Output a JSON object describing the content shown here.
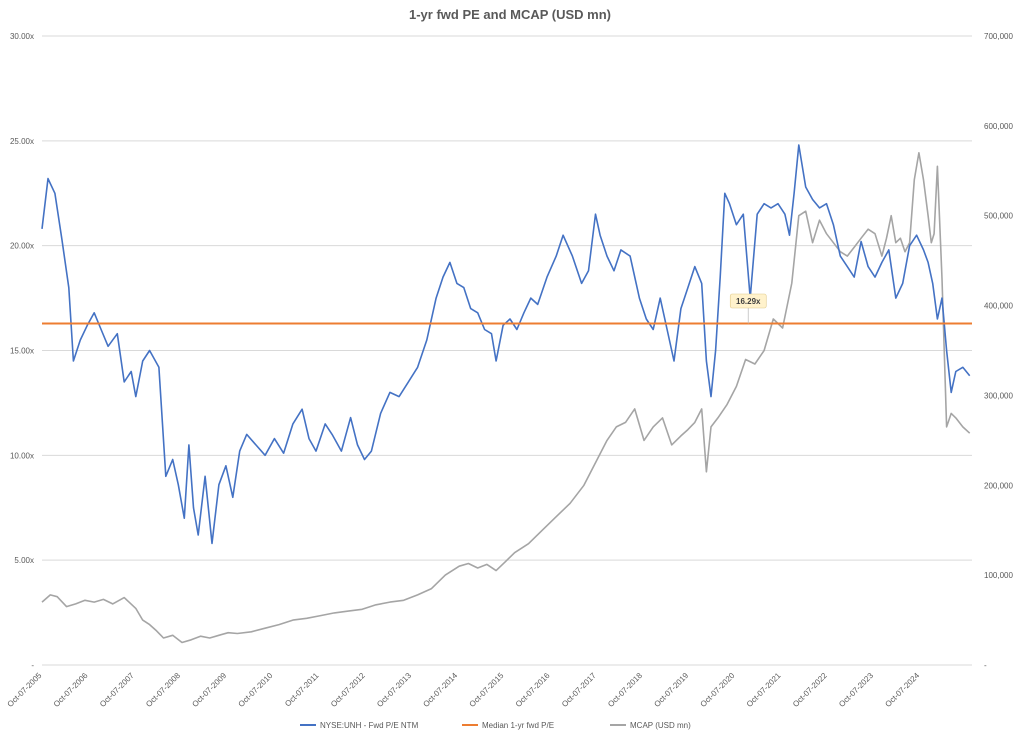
{
  "chart_data": {
    "type": "line",
    "title": "1-yr fwd PE and MCAP (USD mn)",
    "xlabel": "",
    "ylabel": "",
    "y_left": {
      "range": [
        0,
        30
      ],
      "ticks": [
        0,
        5,
        10,
        15,
        20,
        25,
        30
      ],
      "tick_labels": [
        "-",
        "5.00x",
        "10.00x",
        "15.00x",
        "20.00x",
        "25.00x",
        "30.00x"
      ]
    },
    "y_right": {
      "range": [
        0,
        700000
      ],
      "ticks": [
        0,
        100000,
        200000,
        300000,
        400000,
        500000,
        600000,
        700000
      ],
      "tick_labels": [
        "-",
        "100,000",
        "200,000",
        "300,000",
        "400,000",
        "500,000",
        "600,000",
        "700,000"
      ]
    },
    "x_ticks": [
      "Oct-07-2005",
      "Oct-07-2006",
      "Oct-07-2007",
      "Oct-07-2008",
      "Oct-07-2009",
      "Oct-07-2010",
      "Oct-07-2011",
      "Oct-07-2012",
      "Oct-07-2013",
      "Oct-07-2014",
      "Oct-07-2015",
      "Oct-07-2016",
      "Oct-07-2017",
      "Oct-07-2018",
      "Oct-07-2019",
      "Oct-07-2020",
      "Oct-07-2021",
      "Oct-07-2022",
      "Oct-07-2023",
      "Oct-07-2024"
    ],
    "x_range": [
      2005.77,
      2025.9
    ],
    "grid": true,
    "legend_position": "bottom",
    "series": [
      {
        "name": "NYSE:UNH - Fwd P/E NTM",
        "axis": "left",
        "color": "#4472C4",
        "x": [
          2005.77,
          2005.9,
          2006.05,
          2006.2,
          2006.35,
          2006.45,
          2006.6,
          2006.75,
          2006.9,
          2007.05,
          2007.2,
          2007.4,
          2007.55,
          2007.7,
          2007.8,
          2007.95,
          2008.1,
          2008.3,
          2008.45,
          2008.6,
          2008.72,
          2008.85,
          2008.95,
          2009.05,
          2009.15,
          2009.3,
          2009.45,
          2009.6,
          2009.75,
          2009.9,
          2010.05,
          2010.2,
          2010.4,
          2010.6,
          2010.8,
          2011.0,
          2011.2,
          2011.4,
          2011.55,
          2011.7,
          2011.9,
          2012.05,
          2012.25,
          2012.45,
          2012.6,
          2012.75,
          2012.9,
          2013.1,
          2013.3,
          2013.5,
          2013.7,
          2013.9,
          2014.1,
          2014.3,
          2014.45,
          2014.6,
          2014.75,
          2014.9,
          2015.05,
          2015.2,
          2015.35,
          2015.5,
          2015.6,
          2015.75,
          2015.9,
          2016.05,
          2016.2,
          2016.35,
          2016.5,
          2016.7,
          2016.9,
          2017.05,
          2017.25,
          2017.45,
          2017.6,
          2017.75,
          2017.85,
          2018.0,
          2018.15,
          2018.3,
          2018.5,
          2018.7,
          2018.85,
          2019.0,
          2019.15,
          2019.3,
          2019.45,
          2019.6,
          2019.75,
          2019.9,
          2020.05,
          2020.15,
          2020.25,
          2020.35,
          2020.45,
          2020.55,
          2020.65,
          2020.8,
          2020.95,
          2021.1,
          2021.25,
          2021.4,
          2021.55,
          2021.7,
          2021.85,
          2021.95,
          2022.05,
          2022.15,
          2022.3,
          2022.45,
          2022.6,
          2022.75,
          2022.9,
          2023.05,
          2023.2,
          2023.35,
          2023.5,
          2023.65,
          2023.8,
          2023.95,
          2024.1,
          2024.25,
          2024.4,
          2024.55,
          2024.7,
          2024.85,
          2024.95,
          2025.05,
          2025.15,
          2025.25,
          2025.35,
          2025.45,
          2025.55,
          2025.7,
          2025.85
        ],
        "y": [
          20.8,
          23.2,
          22.5,
          20.3,
          18.0,
          14.5,
          15.5,
          16.2,
          16.8,
          16.0,
          15.2,
          15.8,
          13.5,
          14.0,
          12.8,
          14.5,
          15.0,
          14.2,
          9.0,
          9.8,
          8.6,
          7.0,
          10.5,
          7.5,
          6.2,
          9.0,
          5.8,
          8.6,
          9.5,
          8.0,
          10.2,
          11.0,
          10.5,
          10.0,
          10.8,
          10.1,
          11.5,
          12.2,
          10.8,
          10.2,
          11.5,
          11.0,
          10.2,
          11.8,
          10.5,
          9.8,
          10.2,
          12.0,
          13.0,
          12.8,
          13.5,
          14.2,
          15.5,
          17.5,
          18.5,
          19.2,
          18.2,
          18.0,
          17.0,
          16.8,
          16.0,
          15.8,
          14.5,
          16.2,
          16.5,
          16.0,
          16.8,
          17.5,
          17.2,
          18.5,
          19.5,
          20.5,
          19.5,
          18.2,
          18.8,
          21.5,
          20.5,
          19.5,
          18.8,
          19.8,
          19.5,
          17.5,
          16.5,
          16.0,
          17.5,
          16.0,
          14.5,
          17.0,
          18.0,
          19.0,
          18.2,
          14.5,
          12.8,
          15.0,
          18.5,
          22.5,
          22.0,
          21.0,
          21.5,
          17.5,
          21.5,
          22.0,
          21.8,
          22.0,
          21.5,
          20.5,
          22.5,
          24.8,
          22.8,
          22.2,
          21.8,
          22.0,
          21.0,
          19.5,
          19.0,
          18.5,
          20.2,
          19.0,
          18.5,
          19.2,
          19.8,
          17.5,
          18.2,
          20.0,
          20.5,
          19.8,
          19.2,
          18.2,
          16.5,
          17.5,
          15.0,
          13.0,
          14.0,
          14.2,
          13.8
        ]
      },
      {
        "name": "Median 1-yr fwd P/E",
        "axis": "left",
        "color": "#ED7D31",
        "x": [
          2005.77,
          2025.9
        ],
        "y": [
          16.29,
          16.29
        ]
      },
      {
        "name": "MCAP (USD mn)",
        "axis": "right",
        "color": "#A5A5A5",
        "x": [
          2005.77,
          2005.95,
          2006.1,
          2006.3,
          2006.5,
          2006.7,
          2006.9,
          2007.1,
          2007.3,
          2007.55,
          2007.8,
          2007.95,
          2008.1,
          2008.25,
          2008.4,
          2008.6,
          2008.8,
          2009.0,
          2009.2,
          2009.4,
          2009.6,
          2009.8,
          2010.0,
          2010.3,
          2010.6,
          2010.9,
          2011.2,
          2011.5,
          2011.8,
          2012.1,
          2012.4,
          2012.7,
          2013.0,
          2013.3,
          2013.6,
          2013.9,
          2014.2,
          2014.5,
          2014.8,
          2015.0,
          2015.2,
          2015.4,
          2015.6,
          2015.8,
          2016.0,
          2016.3,
          2016.6,
          2016.9,
          2017.2,
          2017.5,
          2017.8,
          2018.0,
          2018.2,
          2018.4,
          2018.6,
          2018.8,
          2019.0,
          2019.2,
          2019.4,
          2019.6,
          2019.75,
          2019.9,
          2020.05,
          2020.15,
          2020.25,
          2020.4,
          2020.6,
          2020.8,
          2021.0,
          2021.2,
          2021.4,
          2021.6,
          2021.8,
          2022.0,
          2022.15,
          2022.3,
          2022.45,
          2022.6,
          2022.75,
          2022.9,
          2023.05,
          2023.2,
          2023.35,
          2023.5,
          2023.65,
          2023.8,
          2023.95,
          2024.05,
          2024.15,
          2024.25,
          2024.35,
          2024.45,
          2024.55,
          2024.65,
          2024.75,
          2024.85,
          2024.95,
          2025.02,
          2025.08,
          2025.15,
          2025.25,
          2025.35,
          2025.45,
          2025.55,
          2025.7,
          2025.85
        ],
        "y": [
          70000,
          78000,
          76000,
          65000,
          68000,
          72000,
          70000,
          73000,
          68000,
          75000,
          63000,
          50000,
          45000,
          38000,
          30000,
          33000,
          25000,
          28000,
          32000,
          30000,
          33000,
          36000,
          35000,
          37000,
          41000,
          45000,
          50000,
          52000,
          55000,
          58000,
          60000,
          62000,
          67000,
          70000,
          72000,
          78000,
          85000,
          100000,
          110000,
          113000,
          108000,
          112000,
          105000,
          115000,
          125000,
          135000,
          150000,
          165000,
          180000,
          200000,
          230000,
          250000,
          265000,
          270000,
          285000,
          250000,
          265000,
          275000,
          245000,
          255000,
          262000,
          270000,
          285000,
          215000,
          265000,
          275000,
          290000,
          310000,
          340000,
          335000,
          350000,
          385000,
          375000,
          425000,
          500000,
          505000,
          470000,
          495000,
          480000,
          470000,
          460000,
          455000,
          465000,
          475000,
          485000,
          480000,
          455000,
          475000,
          500000,
          470000,
          475000,
          460000,
          470000,
          540000,
          570000,
          540000,
          500000,
          470000,
          480000,
          555000,
          430000,
          265000,
          280000,
          275000,
          265000,
          258000
        ]
      }
    ],
    "annotations": [
      {
        "text": "16.29x",
        "x": 2021.1,
        "y": 16.29,
        "axis": "left"
      }
    ]
  }
}
